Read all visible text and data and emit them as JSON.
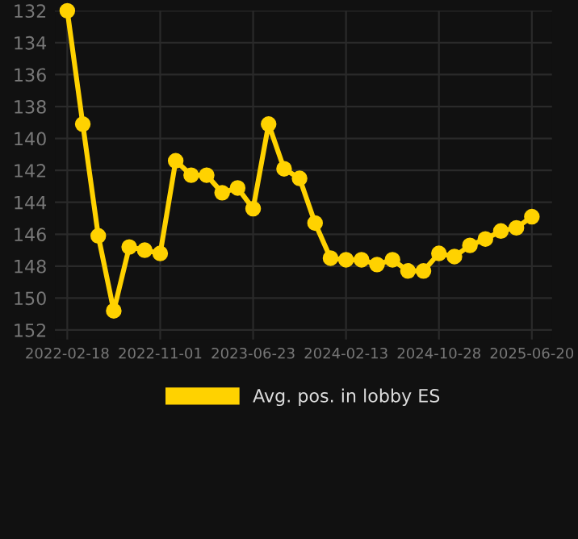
{
  "chart_data": {
    "type": "line",
    "categories": [
      "2022-02-18",
      null,
      null,
      null,
      null,
      null,
      "2022-11-01",
      null,
      null,
      null,
      null,
      null,
      "2023-06-23",
      null,
      null,
      null,
      null,
      null,
      "2024-02-13",
      null,
      null,
      null,
      null,
      null,
      "2024-10-28",
      null,
      null,
      null,
      null,
      null,
      "2025-06-20"
    ],
    "series": [
      {
        "name": "Avg. pos. in lobby ES",
        "color": "#ffd200",
        "values": [
          132.0,
          139.1,
          146.1,
          150.8,
          146.8,
          147.0,
          147.2,
          141.4,
          142.3,
          142.3,
          143.4,
          143.1,
          144.4,
          139.1,
          141.9,
          142.5,
          145.3,
          147.5,
          147.6,
          147.6,
          147.9,
          147.6,
          148.3,
          148.3,
          147.2,
          147.4,
          146.7,
          146.3,
          145.8,
          145.6,
          144.9
        ]
      }
    ],
    "ylim": [
      152.6,
      132
    ],
    "yticks": [
      132,
      134,
      136,
      138,
      140,
      142,
      144,
      146,
      148,
      150,
      152
    ],
    "grid": true,
    "legend": "bottom",
    "marker": "circle",
    "line_style": "solid"
  }
}
